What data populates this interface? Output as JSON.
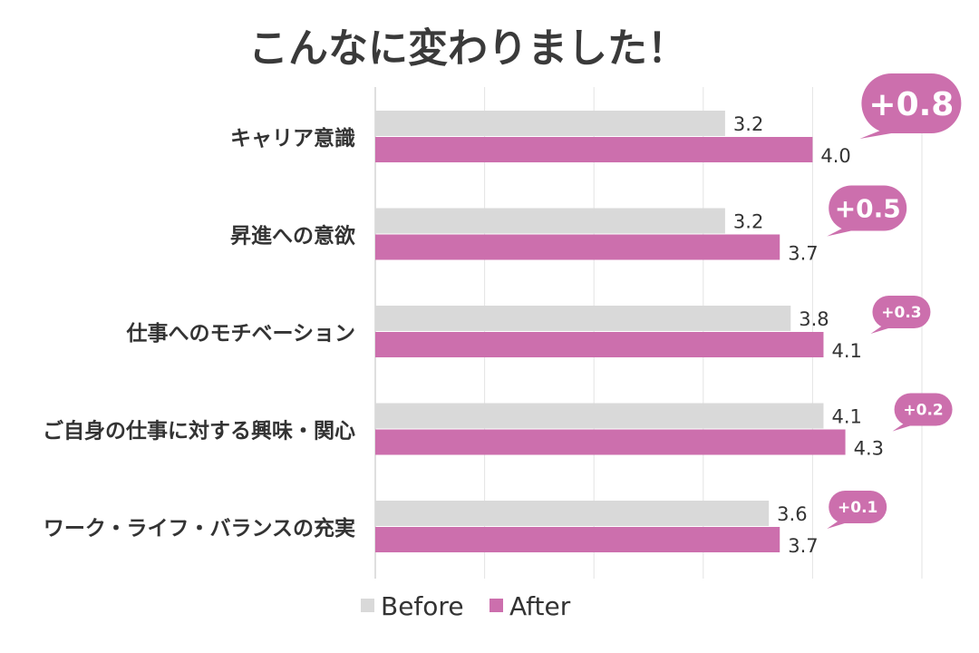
{
  "chart_data": {
    "type": "bar",
    "orientation": "horizontal",
    "title": "こんなに変わりました！",
    "categories": [
      "キャリア意識",
      "昇進への意欲",
      "仕事へのモチベーション",
      "ご自身の仕事に対する興味・関心",
      "ワーク・ライフ・バランスの充実"
    ],
    "series": [
      {
        "name": "Before",
        "values": [
          3.2,
          3.2,
          3.8,
          4.1,
          3.6
        ],
        "color": "#d9d9d9"
      },
      {
        "name": "After",
        "values": [
          4.0,
          3.7,
          4.1,
          4.3,
          3.7
        ],
        "color": "#cc6fad"
      }
    ],
    "value_labels": {
      "Before": [
        "3.2",
        "3.2",
        "3.8",
        "4.1",
        "3.6"
      ],
      "After": [
        "4.0",
        "3.7",
        "4.1",
        "4.3",
        "3.7"
      ]
    },
    "diff_labels": [
      "+0.8",
      "+0.5",
      "+0.3",
      "+0.2",
      "+0.1"
    ],
    "xlim": [
      0,
      5
    ],
    "grid": true,
    "legend": {
      "position": "bottom",
      "entries": [
        "Before",
        "After"
      ]
    },
    "bubble_color": "#cc6fad"
  }
}
